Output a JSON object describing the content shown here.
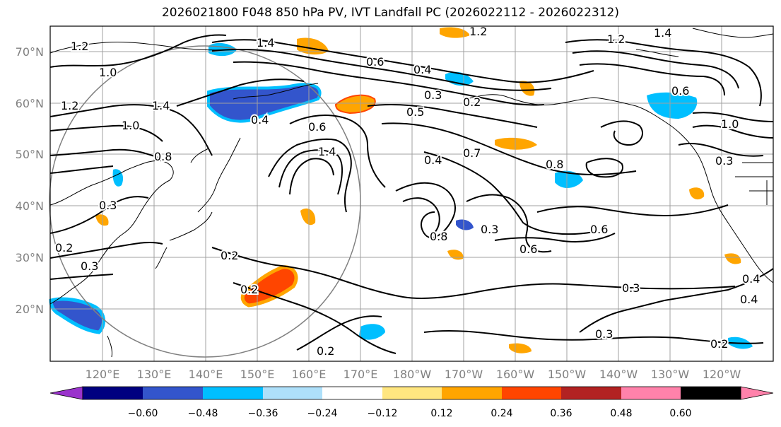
{
  "title": "2026021800 F048 850 hPa PV, IVT Landfall PC (2026022112 - 2026022312)",
  "lat_labels": [
    "70°N",
    "60°N",
    "50°N",
    "40°N",
    "30°N",
    "20°N"
  ],
  "lon_labels": [
    "120°E",
    "130°E",
    "140°E",
    "150°E",
    "160°E",
    "170°E",
    "180°W",
    "170°W",
    "160°W",
    "150°W",
    "140°W",
    "130°W",
    "120°W"
  ],
  "colorbar": {
    "colors": [
      "#9a33cc",
      "#000080",
      "#3355cc",
      "#00bfff",
      "#aee0fa",
      "#ffffff",
      "#ffe680",
      "#ffa500",
      "#ff4500",
      "#b22222",
      "#ff82ab"
    ],
    "labels": [
      "−0.60",
      "−0.48",
      "−0.36",
      "−0.24",
      "−0.12",
      "0.12",
      "0.24",
      "0.36",
      "0.48",
      "0.60"
    ]
  },
  "contour_labels": [
    "1.2",
    "1.4",
    "1.0",
    "0.8",
    "0.6",
    "0.4",
    "0.3",
    "0.2",
    "1.2",
    "1.4",
    "0.6",
    "0.3",
    "0.5",
    "0.7",
    "0.8",
    "0.4",
    "1.4",
    "1.0",
    "0.2",
    "0.3",
    "0.6",
    "0.6",
    "0.3",
    "0.2",
    "0.3",
    "0.2",
    "1.0",
    "0.3",
    "0.6",
    "1.2",
    "1.4",
    "1.2",
    "0.4",
    "0.4",
    "0.8",
    "0.2",
    "0.3",
    "0.2",
    "0.4"
  ],
  "colors": {
    "land_outline": "#000000",
    "grid": "#a0a0a0",
    "circle": "#808080"
  }
}
